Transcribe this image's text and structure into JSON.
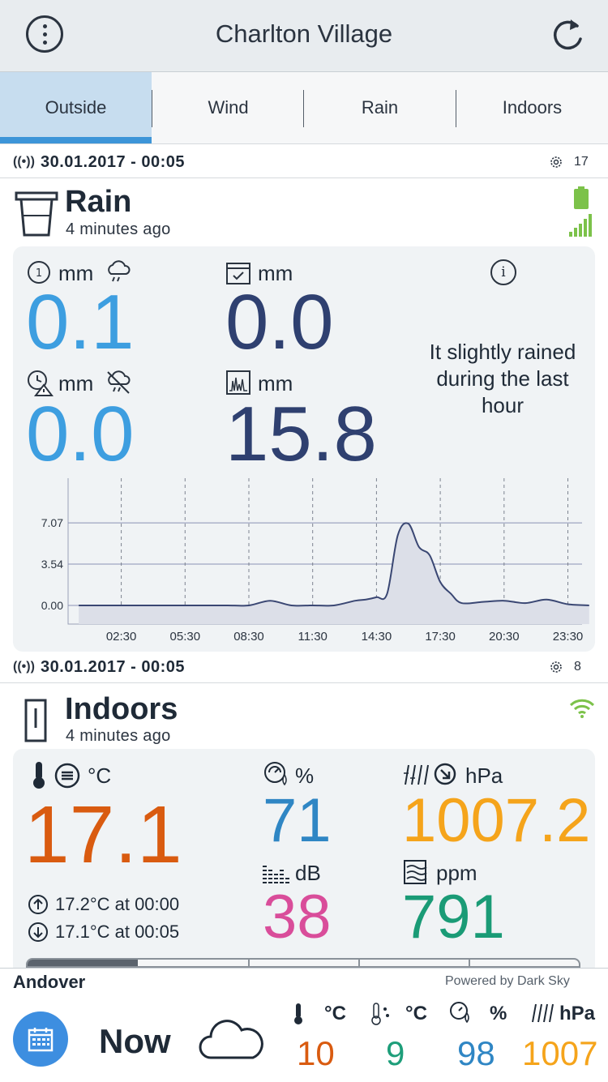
{
  "header": {
    "title": "Charlton Village"
  },
  "tabs": [
    "Outside",
    "Wind",
    "Rain",
    "Indoors"
  ],
  "rain": {
    "timestamp": "30.01.2017 - 00:05",
    "sensor_count": "17",
    "title": "Rain",
    "updated": "4 minutes ago",
    "m1_unit": "mm",
    "m1_value": "0.1",
    "m2_unit": "mm",
    "m2_value": "0.0",
    "m3_unit": "mm",
    "m3_value": "0.0",
    "m4_unit": "mm",
    "m4_value": "15.8",
    "message": "It slightly rained during the last hour"
  },
  "chart_data": {
    "type": "area",
    "ylim": [
      -1.6,
      10.9
    ],
    "yticks": [
      "7.07",
      "3.54",
      "0.00"
    ],
    "ytick_values": [
      7.07,
      3.54,
      0.0
    ],
    "xticks": [
      "02:30",
      "05:30",
      "08:30",
      "11:30",
      "14:30",
      "17:30",
      "20:30",
      "23:30"
    ],
    "x": [
      "00:30",
      "01:30",
      "02:30",
      "03:30",
      "04:30",
      "05:30",
      "06:30",
      "07:30",
      "08:30",
      "09:30",
      "10:30",
      "11:30",
      "12:30",
      "13:30",
      "14:00",
      "14:30",
      "15:00",
      "15:30",
      "16:00",
      "16:30",
      "17:00",
      "17:30",
      "18:00",
      "18:30",
      "19:30",
      "20:30",
      "21:30",
      "22:30",
      "23:30",
      "00:30"
    ],
    "values": [
      0.0,
      0.0,
      0.0,
      0.0,
      0.0,
      0.0,
      0.0,
      0.0,
      0.0,
      0.4,
      0.0,
      0.0,
      0.0,
      0.4,
      0.5,
      0.7,
      1.0,
      6.0,
      7.0,
      5.0,
      4.3,
      2.0,
      1.0,
      0.2,
      0.3,
      0.4,
      0.2,
      0.5,
      0.1,
      0.0
    ],
    "grid": "horizontal+vertical-dashed",
    "colors": {
      "line": "#3a4773",
      "fill": "#dcdfe8",
      "grid": "#8a90b5"
    }
  },
  "indoors": {
    "timestamp": "30.01.2017 - 00:05",
    "sensor_count": "8",
    "title": "Indoors",
    "updated": "4 minutes ago",
    "temp_unit": "°C",
    "temp_value": "17.1",
    "hum_unit": "%",
    "hum_value": "71",
    "pres_unit": "hPa",
    "pres_value": "1007.2",
    "noise_unit": "dB",
    "noise_value": "38",
    "co2_unit": "ppm",
    "co2_value": "791",
    "max_text": "17.2°C at 00:00",
    "min_text": "17.1°C at 00:05"
  },
  "forecast": {
    "location": "Andover",
    "powered": "Powered by Dark Sky",
    "now_label": "Now",
    "units": [
      "°C",
      "°C",
      "%",
      "hPa"
    ],
    "values": [
      "10",
      "9",
      "98",
      "1007"
    ]
  },
  "colors": {
    "accent": "#3d95d8",
    "temp": "#d95b10",
    "dew": "#1e9e7a",
    "humidity": "#2f86c4",
    "pressure": "#f5a41b",
    "noise": "#d94d9a",
    "co2": "#1a9b76",
    "battery": "#7cc24a"
  }
}
